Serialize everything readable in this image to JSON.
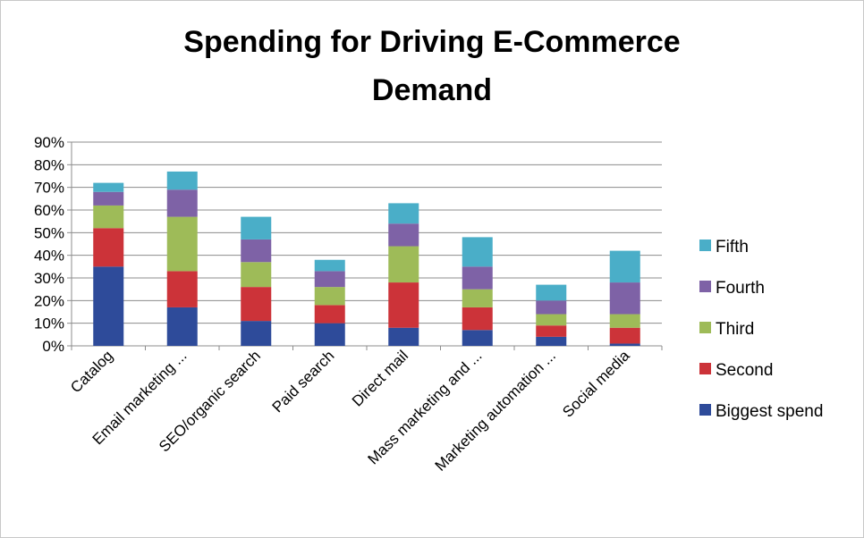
{
  "chart_data": {
    "type": "bar",
    "stacked": true,
    "title_lines": [
      "Spending for Driving E-Commerce",
      "Demand"
    ],
    "xlabel": "",
    "ylabel": "",
    "ylim": [
      0,
      90
    ],
    "y_ticks": [
      "0%",
      "10%",
      "20%",
      "30%",
      "40%",
      "50%",
      "60%",
      "70%",
      "80%",
      "90%"
    ],
    "y_tick_values": [
      0,
      10,
      20,
      30,
      40,
      50,
      60,
      70,
      80,
      90
    ],
    "grid": true,
    "legend_position": "right",
    "categories": [
      "Catalog",
      "Email marketing ...",
      "SEO/organic search",
      "Paid search",
      "Direct mail",
      "Mass marketing and ...",
      "Marketing automation ...",
      "Social media"
    ],
    "series": [
      {
        "name": "Biggest spend",
        "color": "#2e4b9a",
        "values": [
          35,
          17,
          11,
          10,
          8,
          7,
          4,
          1
        ]
      },
      {
        "name": "Second",
        "color": "#cc3339",
        "values": [
          17,
          16,
          15,
          8,
          20,
          10,
          5,
          7
        ]
      },
      {
        "name": "Third",
        "color": "#9ebb58",
        "values": [
          10,
          24,
          11,
          8,
          16,
          8,
          5,
          6
        ]
      },
      {
        "name": "Fourth",
        "color": "#7e62a6",
        "values": [
          6,
          12,
          10,
          7,
          10,
          10,
          6,
          14
        ]
      },
      {
        "name": "Fifth",
        "color": "#4aaec8",
        "values": [
          4,
          8,
          10,
          5,
          9,
          13,
          7,
          14
        ]
      }
    ]
  }
}
